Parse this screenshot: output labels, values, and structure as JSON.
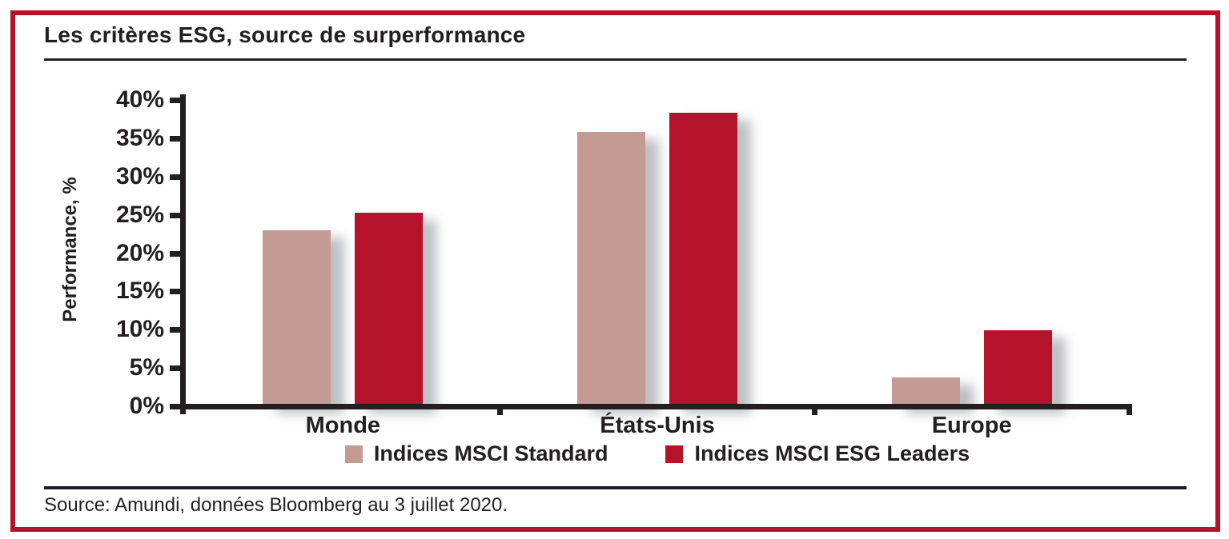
{
  "title": "Les critères ESG, source de surperformance",
  "source": "Source: Amundi, données Bloomberg au 3 juillet 2020.",
  "colors": {
    "accent_red": "#b5122b",
    "bar_standard": "#c49a95",
    "bar_esg_leaders": "#b5122b",
    "axis_ink": "#231f20"
  },
  "chart_data": {
    "type": "bar",
    "title": "Les critères ESG, source de surperformance",
    "categories": [
      "Monde",
      "États-Unis",
      "Europe"
    ],
    "series": [
      {
        "name": "Indices MSCI Standard",
        "color": "#c49a95",
        "values": [
          23.0,
          35.8,
          3.8
        ]
      },
      {
        "name": "Indices MSCI ESG Leaders",
        "color": "#b5122b",
        "values": [
          25.3,
          38.3,
          9.9
        ]
      }
    ],
    "xlabel": "",
    "ylabel": "Performance, %",
    "ylim": [
      0,
      40
    ],
    "ytick_step": 5,
    "yticks": [
      "0%",
      "5%",
      "10%",
      "15%",
      "20%",
      "25%",
      "30%",
      "35%",
      "40%"
    ],
    "grid": false,
    "legend_position": "bottom"
  }
}
